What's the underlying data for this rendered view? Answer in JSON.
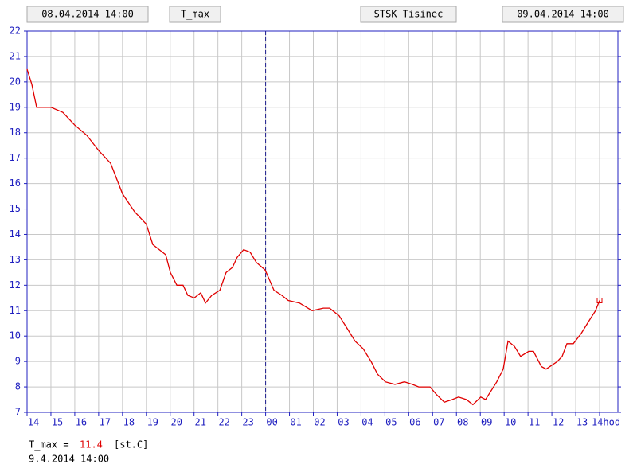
{
  "header": {
    "start": "08.04.2014 14:00",
    "variable": "T_max",
    "station": "STSK Tisinec",
    "end": "09.04.2014 14:00"
  },
  "chart_data": {
    "type": "line",
    "series": [
      {
        "name": "T_max",
        "color": "#e00000",
        "x": [
          0,
          0.2,
          0.4,
          1.0,
          1.5,
          2.0,
          2.5,
          3.0,
          3.5,
          4.0,
          4.5,
          5.0,
          5.27,
          5.54,
          5.81,
          6.01,
          6.28,
          6.54,
          6.74,
          7.01,
          7.28,
          7.48,
          7.74,
          8.08,
          8.34,
          8.61,
          8.81,
          9.08,
          9.35,
          9.61,
          9.98,
          10.35,
          10.68,
          10.95,
          11.42,
          11.95,
          12.42,
          12.68,
          13.08,
          13.42,
          13.75,
          14.09,
          14.42,
          14.69,
          15.02,
          15.42,
          15.82,
          16.15,
          16.42,
          16.89,
          17.16,
          17.49,
          17.82,
          18.09,
          18.42,
          18.69,
          19.02,
          19.22,
          19.69,
          19.96,
          20.16,
          20.43,
          20.69,
          21.03,
          21.23,
          21.56,
          21.76,
          22.23,
          22.43,
          22.63,
          22.9,
          23.23,
          23.56,
          23.83,
          24
        ],
        "values": [
          20.5,
          19.9,
          19.0,
          19.0,
          18.8,
          18.3,
          17.9,
          17.3,
          16.8,
          15.6,
          14.9,
          14.4,
          13.6,
          13.4,
          13.2,
          12.5,
          12.0,
          12.0,
          11.6,
          11.5,
          11.7,
          11.3,
          11.6,
          11.8,
          12.5,
          12.7,
          13.1,
          13.4,
          13.3,
          12.9,
          12.6,
          11.8,
          11.6,
          11.4,
          11.3,
          11.0,
          11.1,
          11.1,
          10.8,
          10.3,
          9.8,
          9.5,
          9.0,
          8.5,
          8.2,
          8.1,
          8.2,
          8.1,
          8.0,
          8.0,
          7.7,
          7.4,
          7.5,
          7.6,
          7.5,
          7.3,
          7.6,
          7.5,
          8.2,
          8.7,
          9.8,
          9.6,
          9.2,
          9.4,
          9.4,
          8.8,
          8.7,
          9.0,
          9.2,
          9.7,
          9.7,
          10.1,
          10.6,
          11.0,
          11.4
        ]
      }
    ],
    "xlim": [
      0,
      24
    ],
    "xticks": [
      {
        "value": 0,
        "label": "14"
      },
      {
        "value": 1,
        "label": "15"
      },
      {
        "value": 2,
        "label": "16"
      },
      {
        "value": 3,
        "label": "17"
      },
      {
        "value": 4,
        "label": "18"
      },
      {
        "value": 5,
        "label": "19"
      },
      {
        "value": 6,
        "label": "20"
      },
      {
        "value": 7,
        "label": "21"
      },
      {
        "value": 8,
        "label": "22"
      },
      {
        "value": 9,
        "label": "23"
      },
      {
        "value": 10,
        "label": "00"
      },
      {
        "value": 11,
        "label": "01"
      },
      {
        "value": 12,
        "label": "02"
      },
      {
        "value": 13,
        "label": "03"
      },
      {
        "value": 14,
        "label": "04"
      },
      {
        "value": 15,
        "label": "05"
      },
      {
        "value": 16,
        "label": "06"
      },
      {
        "value": 17,
        "label": "07"
      },
      {
        "value": 18,
        "label": "08"
      },
      {
        "value": 19,
        "label": "09"
      },
      {
        "value": 20,
        "label": "10"
      },
      {
        "value": 21,
        "label": "11"
      },
      {
        "value": 22,
        "label": "12"
      },
      {
        "value": 23,
        "label": "13"
      },
      {
        "value": 24,
        "label": "14hod"
      }
    ],
    "ylim": [
      7,
      22
    ],
    "yticks": [
      7,
      8,
      9,
      10,
      11,
      12,
      13,
      14,
      15,
      16,
      17,
      18,
      19,
      20,
      21,
      22
    ],
    "grid": true,
    "midnight_x": 10
  },
  "footer": {
    "label": "T_max =",
    "value": 11.4,
    "unit": "[st.C]",
    "time": "9.4.2014 14:00"
  }
}
